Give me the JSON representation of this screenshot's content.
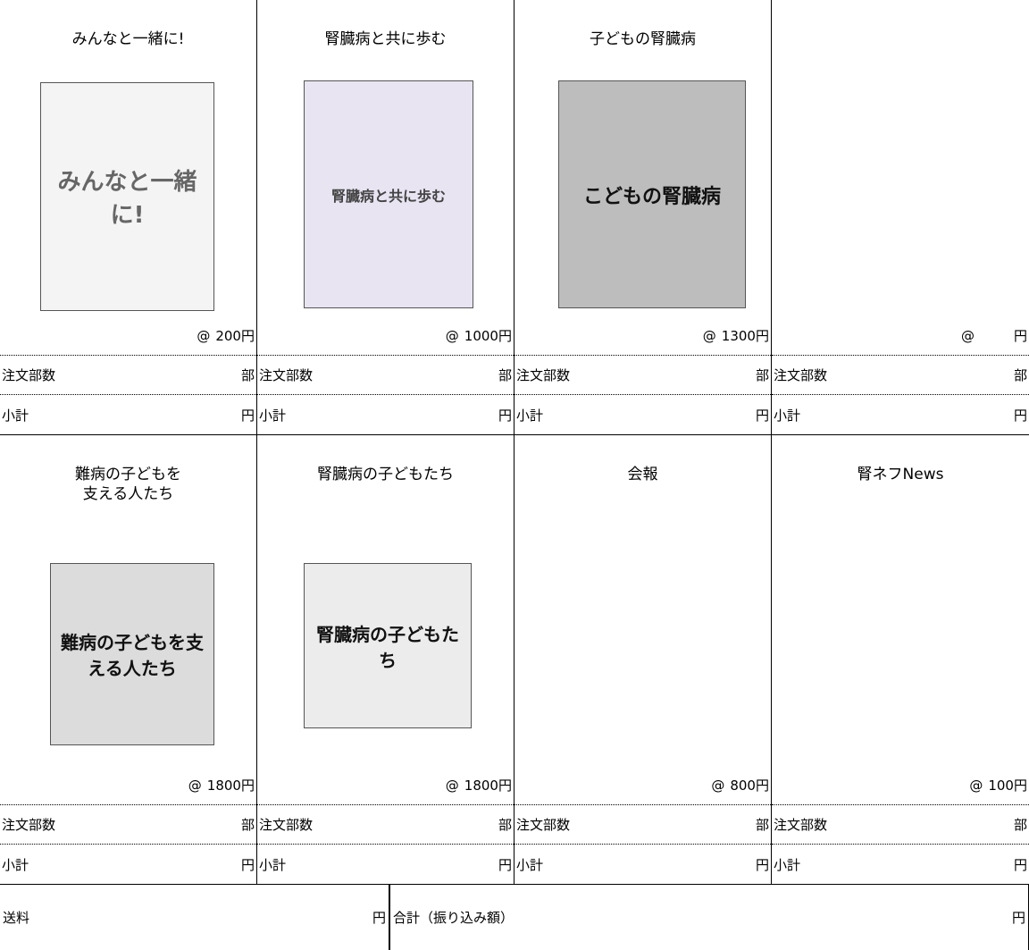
{
  "items": [
    {
      "title": "みんなと一緒に!",
      "cover_text": "みんなと一緒に!",
      "at": "@",
      "price": "200",
      "yen": "円",
      "qty_label": "注文部数",
      "qty_unit": "部",
      "subtotal_label": "小計",
      "subtotal_unit": "円"
    },
    {
      "title": "腎臓病と共に歩む",
      "cover_text": "腎臓病と共に歩む",
      "at": "@",
      "price": "1000",
      "yen": "円",
      "qty_label": "注文部数",
      "qty_unit": "部",
      "subtotal_label": "小計",
      "subtotal_unit": "円"
    },
    {
      "title": "子どもの腎臓病",
      "cover_text": "こどもの腎臓病",
      "at": "@",
      "price": "1300",
      "yen": "円",
      "qty_label": "注文部数",
      "qty_unit": "部",
      "subtotal_label": "小計",
      "subtotal_unit": "円"
    },
    {
      "at": "@",
      "yen": "円",
      "qty_label": "注文部数",
      "qty_unit": "部",
      "subtotal_label": "小計",
      "subtotal_unit": "円"
    },
    {
      "title": "難病の子どもを\n支える人たち",
      "cover_text": "難病の子どもを支える人たち",
      "at": "@",
      "price": "1800",
      "yen": "円",
      "qty_label": "注文部数",
      "qty_unit": "部",
      "subtotal_label": "小計",
      "subtotal_unit": "円"
    },
    {
      "title": "腎臓病の子どもたち",
      "cover_text": "腎臓病の子どもたち",
      "at": "@",
      "price": "1800",
      "yen": "円",
      "qty_label": "注文部数",
      "qty_unit": "部",
      "subtotal_label": "小計",
      "subtotal_unit": "円"
    },
    {
      "title": "会報",
      "at": "@",
      "price": "800",
      "yen": "円",
      "qty_label": "注文部数",
      "qty_unit": "部",
      "subtotal_label": "小計",
      "subtotal_unit": "円"
    },
    {
      "title": "腎ネフNews",
      "at": "@",
      "price": "100",
      "yen": "円",
      "qty_label": "注文部数",
      "qty_unit": "部",
      "subtotal_label": "小計",
      "subtotal_unit": "円"
    }
  ],
  "footer": {
    "shipping_label": "送料",
    "shipping_unit": "円",
    "total_label": "合計（振り込み額）",
    "total_unit": "円"
  }
}
